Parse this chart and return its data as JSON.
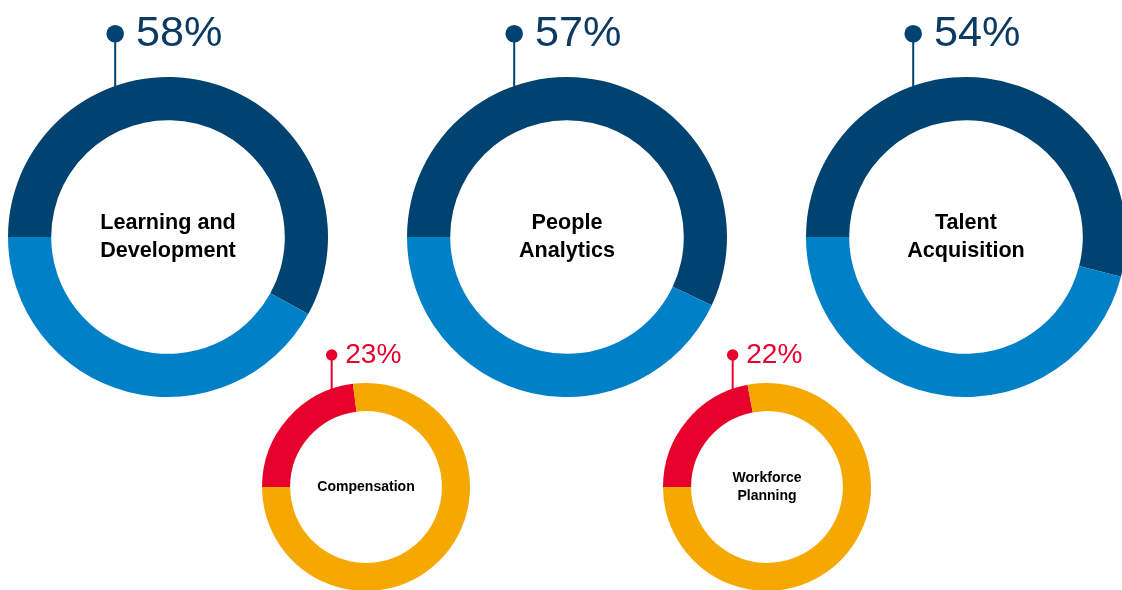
{
  "chart_data": [
    {
      "type": "donut",
      "title": "Learning and Development",
      "categories": [
        null,
        null
      ],
      "values": [
        58,
        42
      ],
      "colors": [
        "#004270",
        "#0080c6"
      ],
      "value_labels": [
        "58%",
        null
      ]
    },
    {
      "type": "donut",
      "title": "People Analytics",
      "categories": [
        null,
        null
      ],
      "values": [
        57,
        43
      ],
      "colors": [
        "#004270",
        "#0080c6"
      ],
      "value_labels": [
        "57%",
        null
      ]
    },
    {
      "type": "donut",
      "title": "Talent Acquisition",
      "categories": [
        null,
        null
      ],
      "values": [
        54,
        46
      ],
      "colors": [
        "#004270",
        "#0080c6"
      ],
      "value_labels": [
        "54%",
        null
      ]
    },
    {
      "type": "donut",
      "title": "Compensation",
      "categories": [
        null,
        null
      ],
      "values": [
        23,
        77
      ],
      "colors": [
        "#e8002d",
        "#f5a800"
      ],
      "value_labels": [
        "23%",
        null
      ]
    },
    {
      "type": "donut",
      "title": "Workforce Planning",
      "categories": [
        null,
        null
      ],
      "values": [
        22,
        78
      ],
      "colors": [
        "#e8002d",
        "#f5a800"
      ],
      "value_labels": [
        "22%",
        null
      ]
    }
  ]
}
